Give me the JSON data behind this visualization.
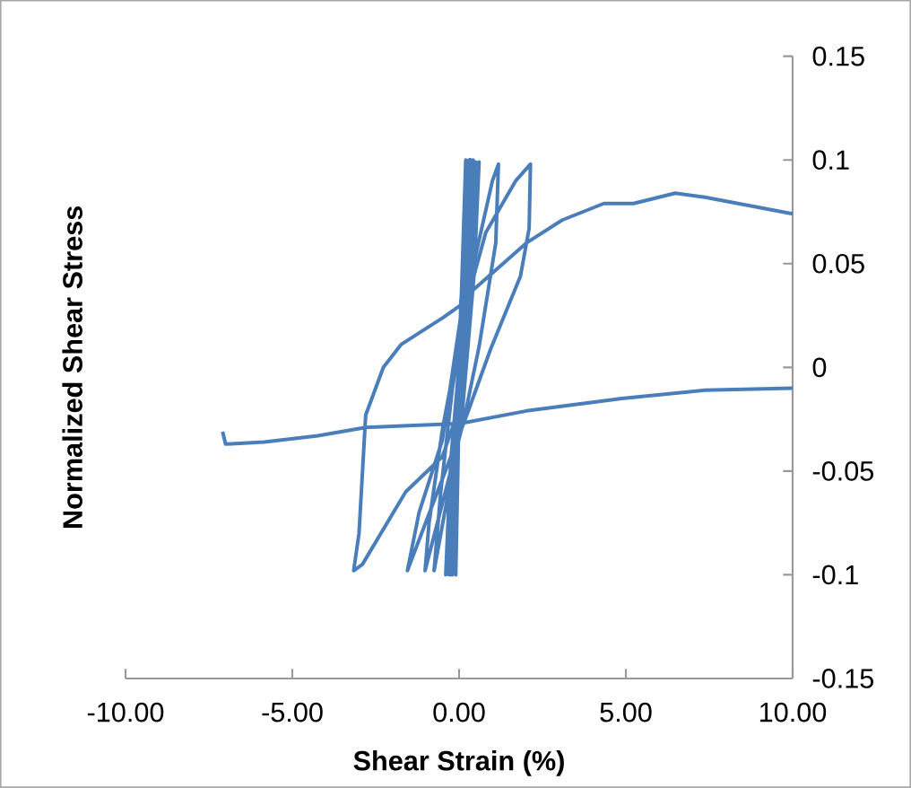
{
  "chart_data": {
    "type": "line",
    "xlabel": "Shear Strain (%)",
    "ylabel": "Normalized Shear Stress",
    "xlim": [
      -10,
      10
    ],
    "ylim": [
      -0.15,
      0.15
    ],
    "xticks": [
      {
        "value": -10,
        "label": "-10.00"
      },
      {
        "value": -5,
        "label": "-5.00"
      },
      {
        "value": 0,
        "label": "0.00"
      },
      {
        "value": 5,
        "label": "5.00"
      },
      {
        "value": 10,
        "label": "10.00"
      }
    ],
    "yticks": [
      -0.15,
      -0.1,
      -0.05,
      0,
      0.05,
      0.1,
      0.15
    ],
    "grid": false,
    "marker": "none",
    "line_style": "solid",
    "series": [
      {
        "color": "#4a7ebb",
        "x": [
          0,
          0.1,
          0.2,
          0.1,
          0,
          -0.1,
          -0.05,
          0.08,
          0.3,
          0.2,
          0.02,
          -0.2,
          -0.12,
          0.08,
          0.35,
          0.22,
          0.03,
          -0.25,
          -0.15,
          0.1,
          0.42,
          0.28,
          0.05,
          -0.3,
          -0.18,
          0.1,
          0.5,
          0.35,
          0.06,
          -0.4,
          -0.25,
          0.1,
          0.6,
          0.45,
          0.08,
          -0.75,
          -0.55,
          -0.2,
          0.3,
          1.0,
          1.18,
          1.1,
          0.6,
          0.15,
          -1.02,
          -0.9,
          -0.5,
          0.2,
          0.8,
          1.7,
          2.14,
          2.1,
          1.84,
          0.95,
          0.23,
          -1.55,
          -1.2,
          -0.5,
          0.1,
          0.3,
          0.32,
          0.05,
          -0.48,
          -1.74,
          -2.27,
          -2.8,
          -3.0,
          -3.16,
          -2.9,
          -1.6,
          -0.5,
          0,
          0.05,
          2.02,
          3.09,
          4.34,
          5.23,
          6.48,
          7.37,
          10,
          null,
          10,
          7.37,
          4.88,
          2.02,
          0.05,
          -2.8,
          -4.23,
          -5.84,
          -7.0,
          -7.09
        ],
        "values": [
          0,
          0.05,
          0.1,
          0.04,
          -0.02,
          -0.1,
          -0.04,
          0.02,
          0.1,
          0.04,
          -0.02,
          -0.1,
          -0.04,
          0.02,
          0.1,
          0.04,
          -0.02,
          -0.1,
          -0.04,
          0.02,
          0.1,
          0.04,
          -0.02,
          -0.1,
          -0.04,
          0.02,
          0.099,
          0.04,
          -0.02,
          -0.1,
          -0.045,
          0.02,
          0.099,
          0.045,
          -0.025,
          -0.098,
          -0.06,
          -0.01,
          0.04,
          0.09,
          0.098,
          0.06,
          0.01,
          -0.025,
          -0.098,
          -0.075,
          -0.03,
          0.03,
          0.065,
          0.09,
          0.098,
          0.067,
          0.044,
          0.009,
          -0.023,
          -0.098,
          -0.07,
          -0.035,
          0.03,
          0.07,
          0.1,
          0.03,
          0.024,
          0.011,
          0,
          -0.023,
          -0.08,
          -0.098,
          -0.095,
          -0.06,
          -0.043,
          -0.02,
          0.032,
          0.06,
          0.071,
          0.079,
          0.079,
          0.084,
          0.082,
          0.074,
          null,
          -0.01,
          -0.011,
          -0.015,
          -0.021,
          -0.027,
          -0.029,
          -0.033,
          -0.036,
          -0.037,
          -0.031
        ]
      }
    ]
  }
}
